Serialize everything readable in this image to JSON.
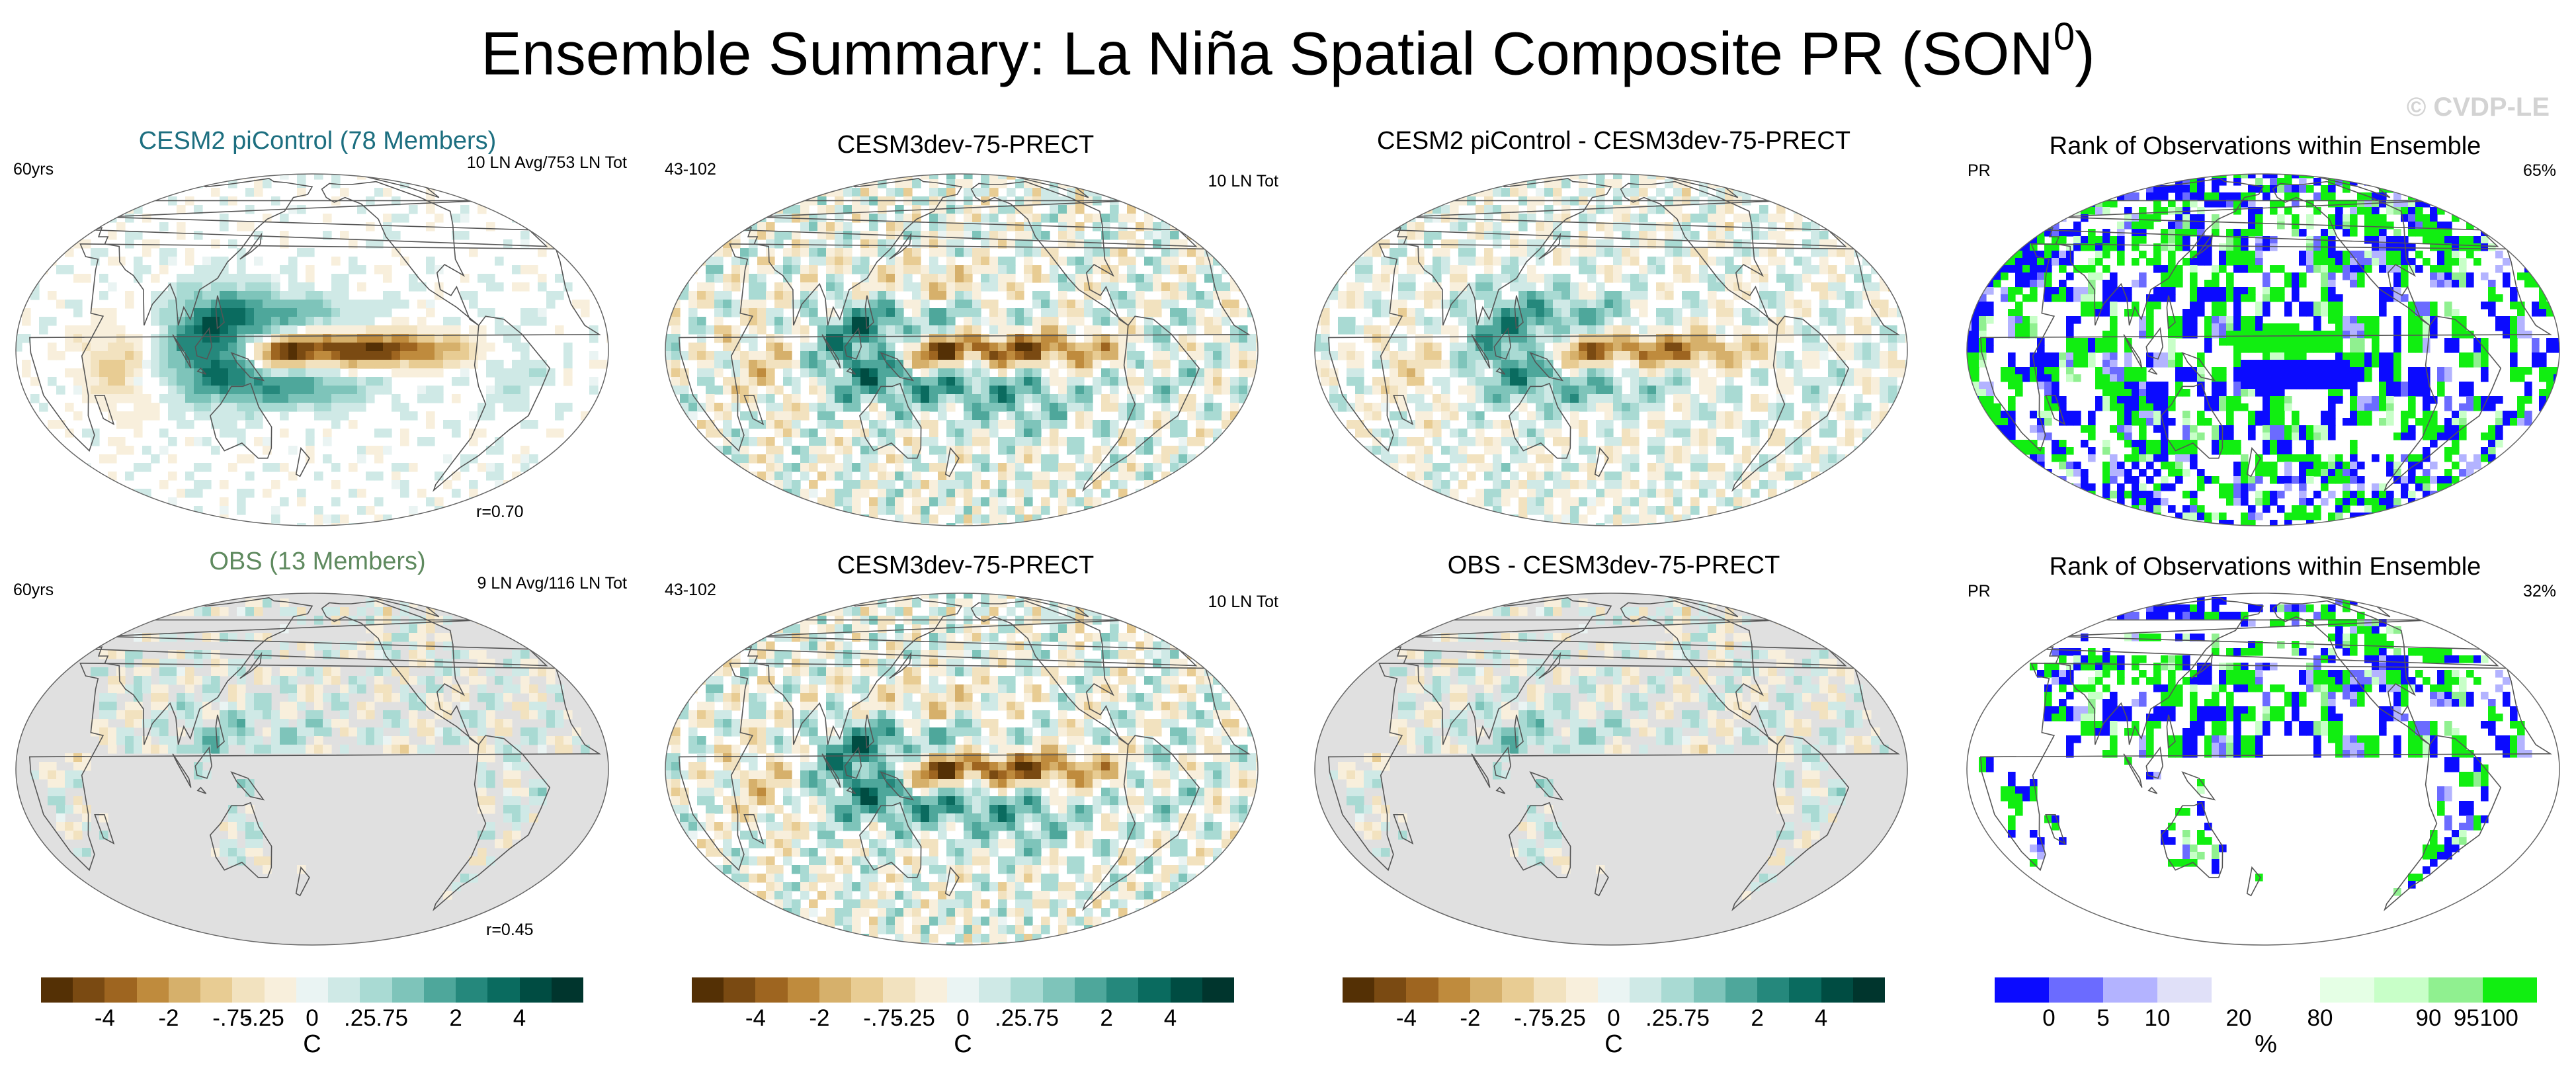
{
  "figure": {
    "title_main": "Ensemble Summary: La Niña Spatial Composite PR (SON",
    "title_sup": "0",
    "title_tail": ")",
    "watermark": "© CVDP-LE"
  },
  "panels": {
    "r1c1": {
      "title": "CESM2 piControl (78 Members)",
      "title_color": "#1d6f80",
      "left": "60yrs",
      "right": "10 LN Avg/753 LN Tot",
      "corr": "r=0.70"
    },
    "r1c2": {
      "title": "CESM3dev-75-PRECT",
      "left": "43-102",
      "right": "10 LN Tot"
    },
    "r1c3": {
      "title": "CESM2 piControl - CESM3dev-75-PRECT"
    },
    "r1c4": {
      "title": "Rank of Observations within Ensemble",
      "left": "PR",
      "right": "65%"
    },
    "r2c1": {
      "title": "OBS (13 Members)",
      "title_color": "#5f8a5f",
      "left": "60yrs",
      "right": "9 LN Avg/116 LN Tot",
      "corr": "r=0.45"
    },
    "r2c2": {
      "title": "CESM3dev-75-PRECT",
      "left": "43-102",
      "right": "10 LN Tot"
    },
    "r2c3": {
      "title": "OBS - CESM3dev-75-PRECT"
    },
    "r2c4": {
      "title": "Rank of Observations within Ensemble",
      "left": "PR",
      "right": "32%"
    }
  },
  "colorbars": {
    "diverging": {
      "colors": [
        "#543005",
        "#7a4a12",
        "#9e6520",
        "#bf8b3d",
        "#d6b06b",
        "#e8cc93",
        "#f2e2bf",
        "#f8efdc",
        "#eaf4f3",
        "#cfe9e6",
        "#a9dad3",
        "#7ec4ba",
        "#4ea79b",
        "#25887c",
        "#0a6b5f",
        "#004c42",
        "#00352d"
      ],
      "ticks": [
        "-4",
        "-2",
        "-.75",
        "-.25",
        "0",
        ".25",
        ".75",
        "2",
        "4"
      ],
      "unit": "C"
    },
    "rank": {
      "colors": [
        "#0b0bff",
        "#6b6bff",
        "#b3b3ff",
        "#e0e0f8",
        "#ffffff",
        "#ffffff",
        "#e5ffe5",
        "#c8ffc8",
        "#90f090",
        "#11ee11"
      ],
      "ticks": [
        "0",
        "5",
        "10",
        "20",
        "80",
        "90",
        "95",
        "100"
      ],
      "unit": "%"
    }
  },
  "colors": {
    "land_mask": "#e0e0e0",
    "ocean_neutral": "#f6f6f0",
    "coast": "#555555"
  }
}
